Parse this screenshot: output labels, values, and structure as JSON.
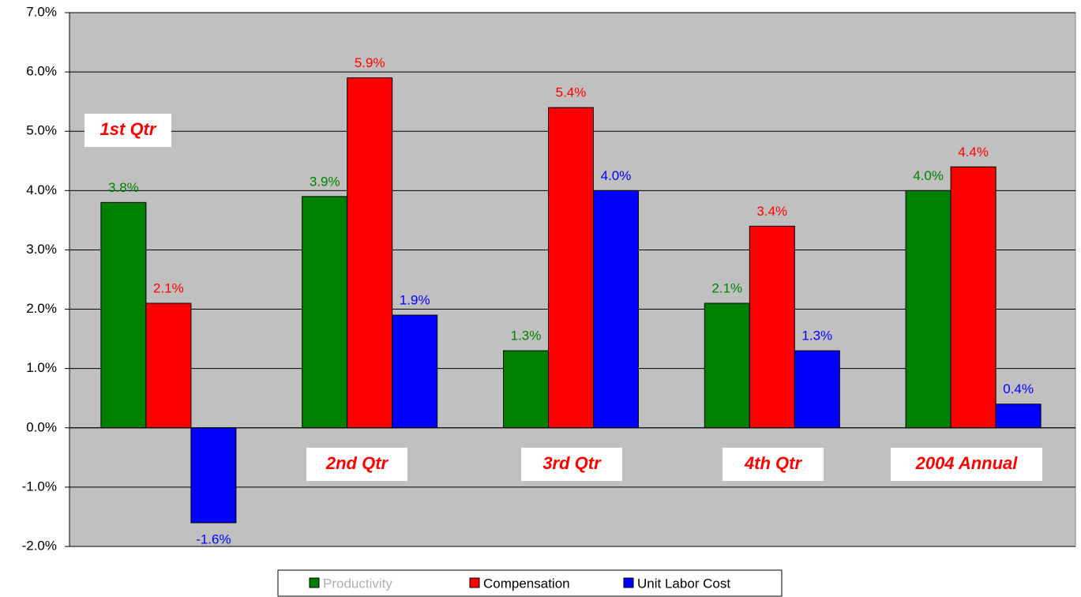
{
  "chart_data": {
    "type": "bar",
    "categories": [
      "1st Qtr",
      "2nd Qtr",
      "3rd Qtr",
      "4th Qtr",
      "2004 Annual"
    ],
    "series": [
      {
        "name": "Productivity",
        "color": "#008000",
        "values": [
          3.8,
          3.9,
          1.3,
          2.1,
          4.0
        ],
        "value_labels": [
          "3.8%",
          "3.9%",
          "1.3%",
          "2.1%",
          "4.0%"
        ]
      },
      {
        "name": "Compensation",
        "color": "#ff0000",
        "values": [
          2.1,
          5.9,
          5.4,
          3.4,
          4.4
        ],
        "value_labels": [
          "2.1%",
          "5.9%",
          "5.4%",
          "3.4%",
          "4.4%"
        ]
      },
      {
        "name": "Unit Labor Cost",
        "color": "#0000ff",
        "values": [
          -1.6,
          1.9,
          4.0,
          1.3,
          0.4
        ],
        "value_labels": [
          "-1.6%",
          "1.9%",
          "4.0%",
          "1.3%",
          "0.4%"
        ]
      }
    ],
    "ylim": [
      -2,
      7
    ],
    "yticks": [
      {
        "value": -2,
        "label": "-2.0%"
      },
      {
        "value": -1,
        "label": "-1.0%"
      },
      {
        "value": 0,
        "label": "0.0%"
      },
      {
        "value": 1,
        "label": "1.0%"
      },
      {
        "value": 2,
        "label": "2.0%"
      },
      {
        "value": 3,
        "label": "3.0%"
      },
      {
        "value": 4,
        "label": "4.0%"
      },
      {
        "value": 5,
        "label": "5.0%"
      },
      {
        "value": 6,
        "label": "6.0%"
      },
      {
        "value": 7,
        "label": "7.0%"
      }
    ],
    "grid": true
  }
}
